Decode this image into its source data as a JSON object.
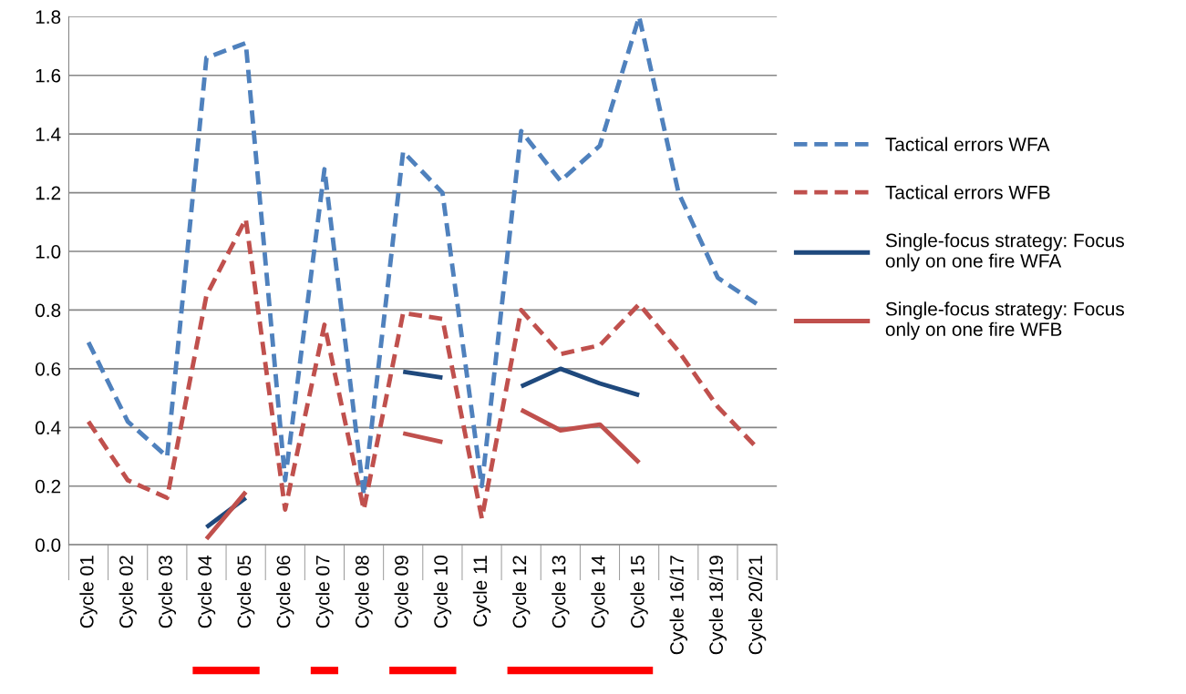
{
  "chart_data": {
    "type": "line",
    "categories": [
      "Cycle 01",
      "Cycle 02",
      "Cycle 03",
      "Cycle 04",
      "Cycle 05",
      "Cycle 06",
      "Cycle 07",
      "Cycle 08",
      "Cycle 09",
      "Cycle 10",
      "Cycle 11",
      "Cycle 12",
      "Cycle 13",
      "Cycle 14",
      "Cycle 15",
      "Cycle 16/17",
      "Cycle 18/19",
      "Cycle 20/21"
    ],
    "series": [
      {
        "name": "Tactical errors WFA",
        "color": "#4f81bd",
        "line_style": "dashed",
        "values": [
          0.69,
          0.42,
          0.3,
          1.66,
          1.71,
          0.22,
          1.28,
          0.17,
          1.34,
          1.2,
          0.2,
          1.41,
          1.24,
          1.36,
          1.8,
          1.2,
          0.91,
          0.82
        ]
      },
      {
        "name": "Tactical errors WFB",
        "color": "#c0504d",
        "line_style": "dashed",
        "values": [
          0.42,
          0.22,
          0.16,
          0.85,
          1.11,
          0.12,
          0.75,
          0.12,
          0.79,
          0.77,
          0.09,
          0.8,
          0.65,
          0.68,
          0.82,
          0.66,
          0.47,
          0.33
        ]
      },
      {
        "name": "Single-focus strategy: Focus\nonly on one fire WFA",
        "color": "#1f497d",
        "line_style": "solid",
        "values": [
          null,
          null,
          null,
          0.06,
          0.16,
          null,
          null,
          null,
          0.59,
          0.57,
          null,
          0.54,
          0.6,
          0.55,
          0.51,
          null,
          null,
          null
        ]
      },
      {
        "name": "Single-focus strategy: Focus\nonly on one fire WFB",
        "color": "#c0504d",
        "line_style": "solid",
        "values": [
          null,
          null,
          null,
          0.02,
          0.18,
          null,
          null,
          null,
          0.38,
          0.35,
          null,
          0.46,
          0.39,
          0.41,
          0.28,
          null,
          null,
          null
        ]
      }
    ],
    "ylim": [
      0,
      1.8
    ],
    "yticks": [
      {
        "value": 0,
        "label": "0.0"
      },
      {
        "value": 0.2,
        "label": "0.2"
      },
      {
        "value": 0.4,
        "label": "0.4"
      },
      {
        "value": 0.6,
        "label": "0.6"
      },
      {
        "value": 0.8,
        "label": "0.8"
      },
      {
        "value": 1.0,
        "label": "1.0"
      },
      {
        "value": 1.2,
        "label": "1.2"
      },
      {
        "value": 1.4,
        "label": "1.4"
      },
      {
        "value": 1.6,
        "label": "1.6"
      },
      {
        "value": 1.8,
        "label": "1.8"
      }
    ],
    "grid": "y",
    "legend": "right",
    "marker": "none"
  }
}
